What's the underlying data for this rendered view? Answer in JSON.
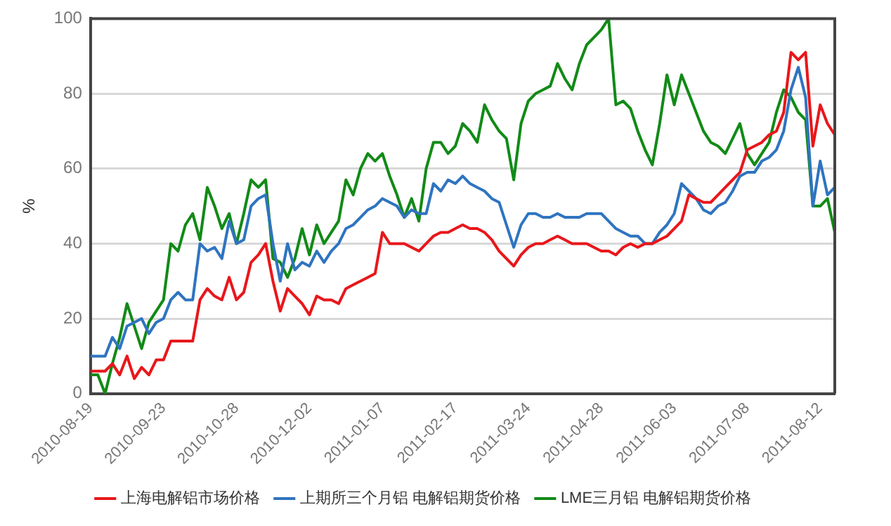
{
  "chart_data": {
    "type": "line",
    "ylabel": "%",
    "ylim": [
      0,
      100
    ],
    "yticks": [
      0,
      20,
      40,
      60,
      80,
      100
    ],
    "grid": "y",
    "legend": "bottom",
    "marker": "none",
    "line_style": "solid",
    "categories": [
      "2010-08-19",
      null,
      null,
      null,
      null,
      null,
      null,
      null,
      null,
      null,
      "2010-09-23",
      null,
      null,
      null,
      null,
      null,
      null,
      null,
      null,
      null,
      "2010-10-28",
      null,
      null,
      null,
      null,
      null,
      null,
      null,
      null,
      null,
      "2010-12-02",
      null,
      null,
      null,
      null,
      null,
      null,
      null,
      null,
      null,
      "2011-01-07",
      null,
      null,
      null,
      null,
      null,
      null,
      null,
      null,
      null,
      "2011-02-17",
      null,
      null,
      null,
      null,
      null,
      null,
      null,
      null,
      null,
      "2011-03-24",
      null,
      null,
      null,
      null,
      null,
      null,
      null,
      null,
      null,
      "2011-04-28",
      null,
      null,
      null,
      null,
      null,
      null,
      null,
      null,
      null,
      "2011-06-03",
      null,
      null,
      null,
      null,
      null,
      null,
      null,
      null,
      null,
      "2011-07-08",
      null,
      null,
      null,
      null,
      null,
      null,
      null,
      null,
      null,
      "2011-08-12",
      null,
      null
    ],
    "series": [
      {
        "name": "上海电解铝市场价格",
        "color": "#e8171b",
        "values": [
          6,
          6,
          6,
          8,
          5,
          10,
          4,
          7,
          5,
          9,
          9,
          14,
          14,
          14,
          14,
          25,
          28,
          26,
          25,
          31,
          25,
          27,
          35,
          37,
          40,
          30,
          22,
          28,
          26,
          24,
          21,
          26,
          25,
          25,
          24,
          28,
          29,
          30,
          31,
          32,
          43,
          40,
          40,
          40,
          39,
          38,
          40,
          42,
          43,
          43,
          44,
          45,
          44,
          44,
          43,
          41,
          38,
          36,
          34,
          37,
          39,
          40,
          40,
          41,
          42,
          41,
          40,
          40,
          40,
          39,
          38,
          38,
          37,
          39,
          40,
          39,
          40,
          40,
          41,
          42,
          44,
          46,
          53,
          52,
          51,
          51,
          53,
          55,
          57,
          59,
          65,
          66,
          67,
          69,
          70,
          75,
          91,
          89,
          91,
          66,
          77,
          72,
          69
        ]
      },
      {
        "name": "上期所三个月铝 电解铝期货价格",
        "color": "#2f74c0",
        "values": [
          10,
          10,
          10,
          15,
          12,
          18,
          19,
          20,
          16,
          19,
          20,
          25,
          27,
          25,
          25,
          40,
          38,
          39,
          36,
          46,
          40,
          41,
          50,
          52,
          53,
          40,
          30,
          40,
          33,
          35,
          34,
          38,
          35,
          38,
          40,
          44,
          45,
          47,
          49,
          50,
          52,
          51,
          50,
          47,
          49,
          48,
          48,
          56,
          54,
          57,
          56,
          58,
          56,
          55,
          54,
          52,
          51,
          45,
          39,
          45,
          48,
          48,
          47,
          47,
          48,
          47,
          47,
          47,
          48,
          48,
          48,
          46,
          44,
          43,
          42,
          42,
          40,
          40,
          43,
          45,
          48,
          56,
          54,
          52,
          49,
          48,
          50,
          51,
          54,
          58,
          59,
          59,
          62,
          63,
          65,
          70,
          81,
          87,
          79,
          50,
          62,
          53,
          55
        ]
      },
      {
        "name": "LME三月铝 电解铝期货价格",
        "color": "#128a17",
        "values": [
          5,
          5,
          0,
          8,
          15,
          24,
          18,
          12,
          19,
          22,
          25,
          40,
          38,
          45,
          48,
          41,
          55,
          50,
          44,
          48,
          40,
          48,
          57,
          55,
          57,
          36,
          35,
          31,
          36,
          44,
          37,
          45,
          40,
          43,
          46,
          57,
          53,
          60,
          64,
          62,
          64,
          58,
          53,
          47,
          52,
          46,
          60,
          67,
          67,
          64,
          66,
          72,
          70,
          67,
          77,
          73,
          70,
          68,
          57,
          72,
          78,
          80,
          81,
          82,
          88,
          84,
          81,
          88,
          93,
          95,
          97,
          100,
          77,
          78,
          76,
          70,
          65,
          61,
          72,
          85,
          77,
          85,
          80,
          75,
          70,
          67,
          66,
          64,
          68,
          72,
          64,
          61,
          64,
          67,
          75,
          81,
          79,
          75,
          73,
          50,
          50,
          52,
          43
        ]
      }
    ]
  }
}
